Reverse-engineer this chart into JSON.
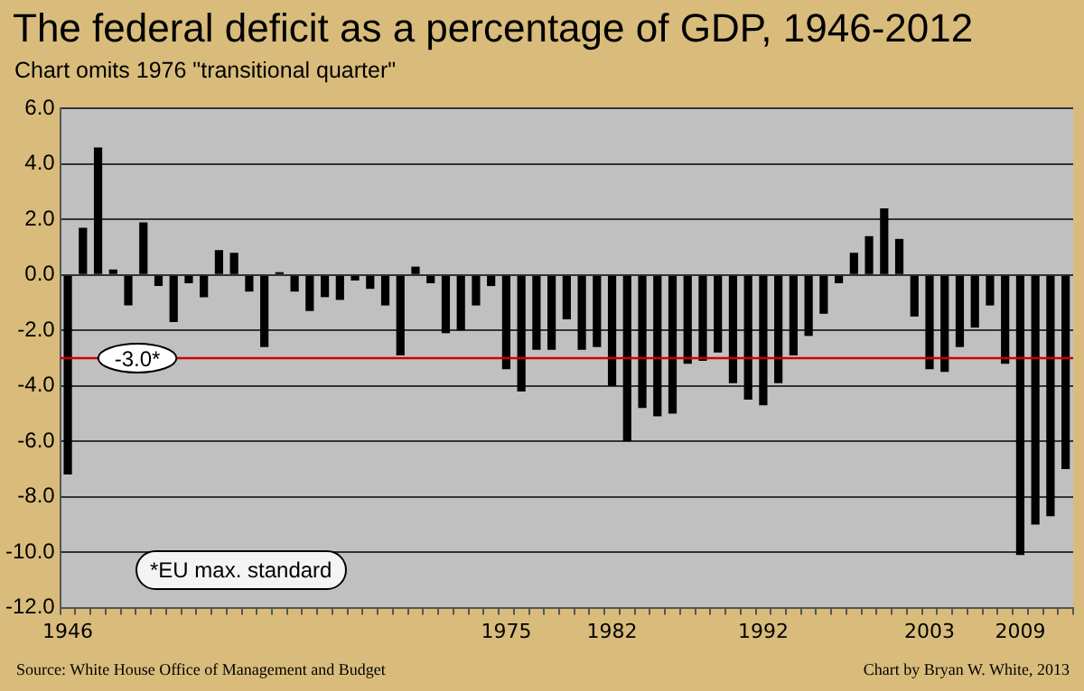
{
  "chart_data": {
    "type": "bar",
    "title": "The federal deficit as a percentage of GDP, 1946-2012",
    "subtitle": "Chart omits 1976 \"transitional quarter\"",
    "categories": [
      "1946",
      null,
      null,
      null,
      null,
      null,
      null,
      null,
      null,
      null,
      null,
      null,
      null,
      null,
      null,
      null,
      null,
      null,
      null,
      null,
      null,
      null,
      null,
      null,
      null,
      null,
      null,
      null,
      null,
      "1975",
      null,
      null,
      null,
      null,
      null,
      null,
      "1982",
      null,
      null,
      null,
      null,
      null,
      null,
      null,
      null,
      null,
      "1992",
      null,
      null,
      null,
      null,
      null,
      null,
      null,
      null,
      null,
      null,
      "2003",
      null,
      null,
      null,
      null,
      null,
      "2009",
      null,
      null,
      null
    ],
    "values": [
      -7.2,
      1.7,
      4.6,
      0.2,
      -1.1,
      1.9,
      -0.4,
      -1.7,
      -0.3,
      -0.8,
      0.9,
      0.8,
      -0.6,
      -2.6,
      0.1,
      -0.6,
      -1.3,
      -0.8,
      -0.9,
      -0.2,
      -0.5,
      -1.1,
      -2.9,
      0.3,
      -0.3,
      -2.1,
      -2.0,
      -1.1,
      -0.4,
      -3.4,
      -4.2,
      -2.7,
      -2.7,
      -1.6,
      -2.7,
      -2.6,
      -4.0,
      -6.0,
      -4.8,
      -5.1,
      -5.0,
      -3.2,
      -3.1,
      -2.8,
      -3.9,
      -4.5,
      -4.7,
      -3.9,
      -2.9,
      -2.2,
      -1.4,
      -0.3,
      0.8,
      1.4,
      2.4,
      1.3,
      -1.5,
      -3.4,
      -3.5,
      -2.6,
      -1.9,
      -1.1,
      -3.2,
      -10.1,
      -9.0,
      -8.7,
      -7.0
    ],
    "color": "#000000",
    "ylim": [
      -12,
      6
    ],
    "yticks": [
      {
        "value": 6,
        "label": "6.0"
      },
      {
        "value": 4,
        "label": "4.0"
      },
      {
        "value": 2,
        "label": "2.0"
      },
      {
        "value": 0,
        "label": "0.0"
      },
      {
        "value": -2,
        "label": "-2.0"
      },
      {
        "value": -4,
        "label": "-4.0"
      },
      {
        "value": -6,
        "label": "-6.0"
      },
      {
        "value": -8,
        "label": "-8.0"
      },
      {
        "value": -10,
        "label": "-10.0"
      },
      {
        "value": -12,
        "label": "-12.0"
      }
    ],
    "grid": "y",
    "legend": false,
    "ref_lines": [
      {
        "axis": "y",
        "value": -3.0,
        "label": "-3.0*",
        "color": "#cc0000"
      }
    ],
    "annotations": [
      "*EU max. standard",
      "Source:  White House Office of Management and Budget",
      "Chart by Bryan W. White, 2013"
    ]
  }
}
